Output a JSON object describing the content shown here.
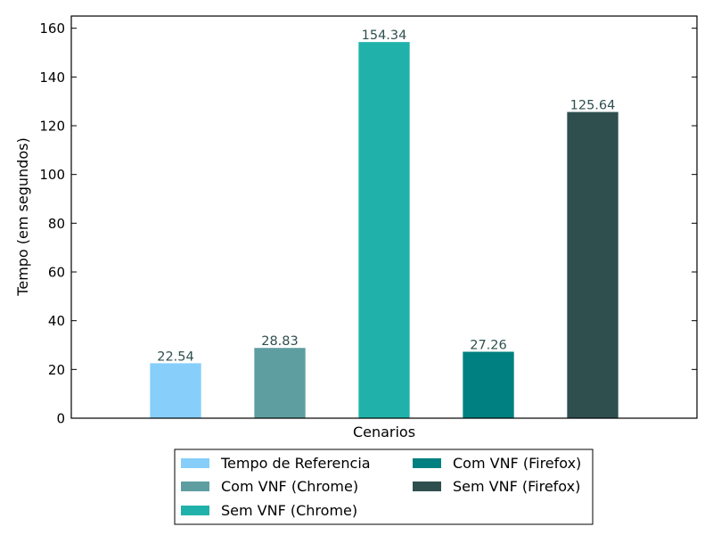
{
  "chart_data": {
    "type": "bar",
    "xlabel": "Cenarios",
    "ylabel": "Tempo (em segundos)",
    "ylim": [
      0,
      165
    ],
    "yticks": [
      0,
      20,
      40,
      60,
      80,
      100,
      120,
      140,
      160
    ],
    "grid": false,
    "legend_placement": "bottom-center-outside",
    "series": [
      {
        "name": "Tempo de Referencia",
        "value": 22.54,
        "label": "22.54",
        "color": "#87cefa"
      },
      {
        "name": "Com VNF (Chrome)",
        "value": 28.83,
        "label": "28.83",
        "color": "#5f9ea0"
      },
      {
        "name": "Sem VNF (Chrome)",
        "value": 154.34,
        "label": "154.34",
        "color": "#20b2aa"
      },
      {
        "name": "Com VNF (Firefox)",
        "value": 27.26,
        "label": "27.26",
        "color": "#008080"
      },
      {
        "name": "Sem VNF (Firefox)",
        "value": 125.64,
        "label": "125.64",
        "color": "#2f4f4f"
      }
    ]
  }
}
